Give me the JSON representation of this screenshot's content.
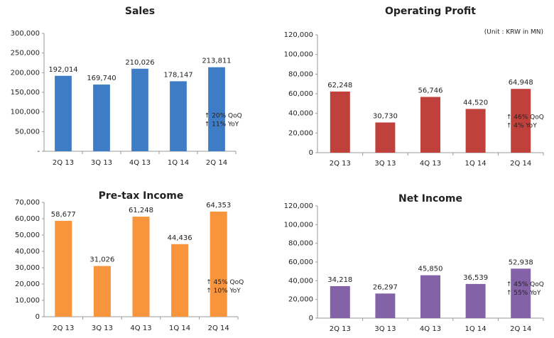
{
  "chart_data": [
    {
      "type": "bar",
      "title": "Sales",
      "categories": [
        "2Q 13",
        "3Q 13",
        "4Q 13",
        "1Q 14",
        "2Q 14"
      ],
      "values": [
        192014,
        169740,
        210026,
        178147,
        213811
      ],
      "value_labels": [
        "192,014",
        "169,740",
        "210,026",
        "178,147",
        "213,811"
      ],
      "color": "#3f7cc6",
      "ylim": [
        0,
        300000
      ],
      "yticks": [
        {
          "value": 0,
          "label": "-"
        },
        {
          "value": 50000,
          "label": "50,000"
        },
        {
          "value": 100000,
          "label": "100,000"
        },
        {
          "value": 150000,
          "label": "150,000"
        },
        {
          "value": 200000,
          "label": "200,000"
        },
        {
          "value": 250000,
          "label": "250,000"
        },
        {
          "value": 300000,
          "label": "300,000"
        }
      ],
      "annotations": [
        "↑ 20% QoQ",
        "↑ 11% YoY"
      ]
    },
    {
      "type": "bar",
      "title": "Operating Profit",
      "unit_note": "(Unit : KRW in MN)",
      "categories": [
        "2Q 13",
        "3Q 13",
        "4Q 13",
        "1Q 14",
        "2Q 14"
      ],
      "values": [
        62248,
        30730,
        56746,
        44520,
        64948
      ],
      "value_labels": [
        "62,248",
        "30,730",
        "56,746",
        "44,520",
        "64,948"
      ],
      "color": "#c0403c",
      "ylim": [
        0,
        120000
      ],
      "yticks": [
        0,
        {
          "value": 20000,
          "label": "20,000"
        },
        {
          "value": 40000,
          "label": "40,000"
        },
        {
          "value": 60000,
          "label": "60,000"
        },
        {
          "value": 80000,
          "label": "80,000"
        },
        {
          "value": 100000,
          "label": "100,000"
        },
        {
          "value": 120000,
          "label": "120,000"
        }
      ],
      "annotations": [
        "↑ 46% QoQ",
        "↑ 4% YoY"
      ]
    },
    {
      "type": "bar",
      "title": "Pre-tax Income",
      "categories": [
        "2Q 13",
        "3Q 13",
        "4Q 13",
        "1Q 14",
        "2Q 14"
      ],
      "values": [
        58677,
        31026,
        61248,
        44436,
        64353
      ],
      "value_labels": [
        "58,677",
        "31,026",
        "61,248",
        "44,436",
        "64,353"
      ],
      "color": "#f7943c",
      "ylim": [
        0,
        70000
      ],
      "yticks": [
        0,
        {
          "value": 10000,
          "label": "10,000"
        },
        {
          "value": 20000,
          "label": "20,000"
        },
        {
          "value": 30000,
          "label": "30,000"
        },
        {
          "value": 40000,
          "label": "40,000"
        },
        {
          "value": 50000,
          "label": "50,000"
        },
        {
          "value": 60000,
          "label": "60,000"
        },
        {
          "value": 70000,
          "label": "70,000"
        }
      ],
      "annotations": [
        "↑ 45% QoQ",
        "↑ 10% YoY"
      ]
    },
    {
      "type": "bar",
      "title": "Net Income",
      "categories": [
        "2Q 13",
        "3Q 13",
        "4Q 13",
        "1Q 14",
        "2Q 14"
      ],
      "values": [
        34218,
        26297,
        45850,
        36539,
        52938
      ],
      "value_labels": [
        "34,218",
        "26,297",
        "45,850",
        "36,539",
        "52,938"
      ],
      "color": "#8462a8",
      "ylim": [
        0,
        120000
      ],
      "yticks": [
        0,
        {
          "value": 20000,
          "label": "20,000"
        },
        {
          "value": 40000,
          "label": "40,000"
        },
        {
          "value": 60000,
          "label": "60,000"
        },
        {
          "value": 80000,
          "label": "80,000"
        },
        {
          "value": 100000,
          "label": "100,000"
        },
        {
          "value": 120000,
          "label": "120,000"
        }
      ],
      "annotations": [
        "↑ 45% QoQ",
        "↑ 55% YoY"
      ]
    }
  ]
}
